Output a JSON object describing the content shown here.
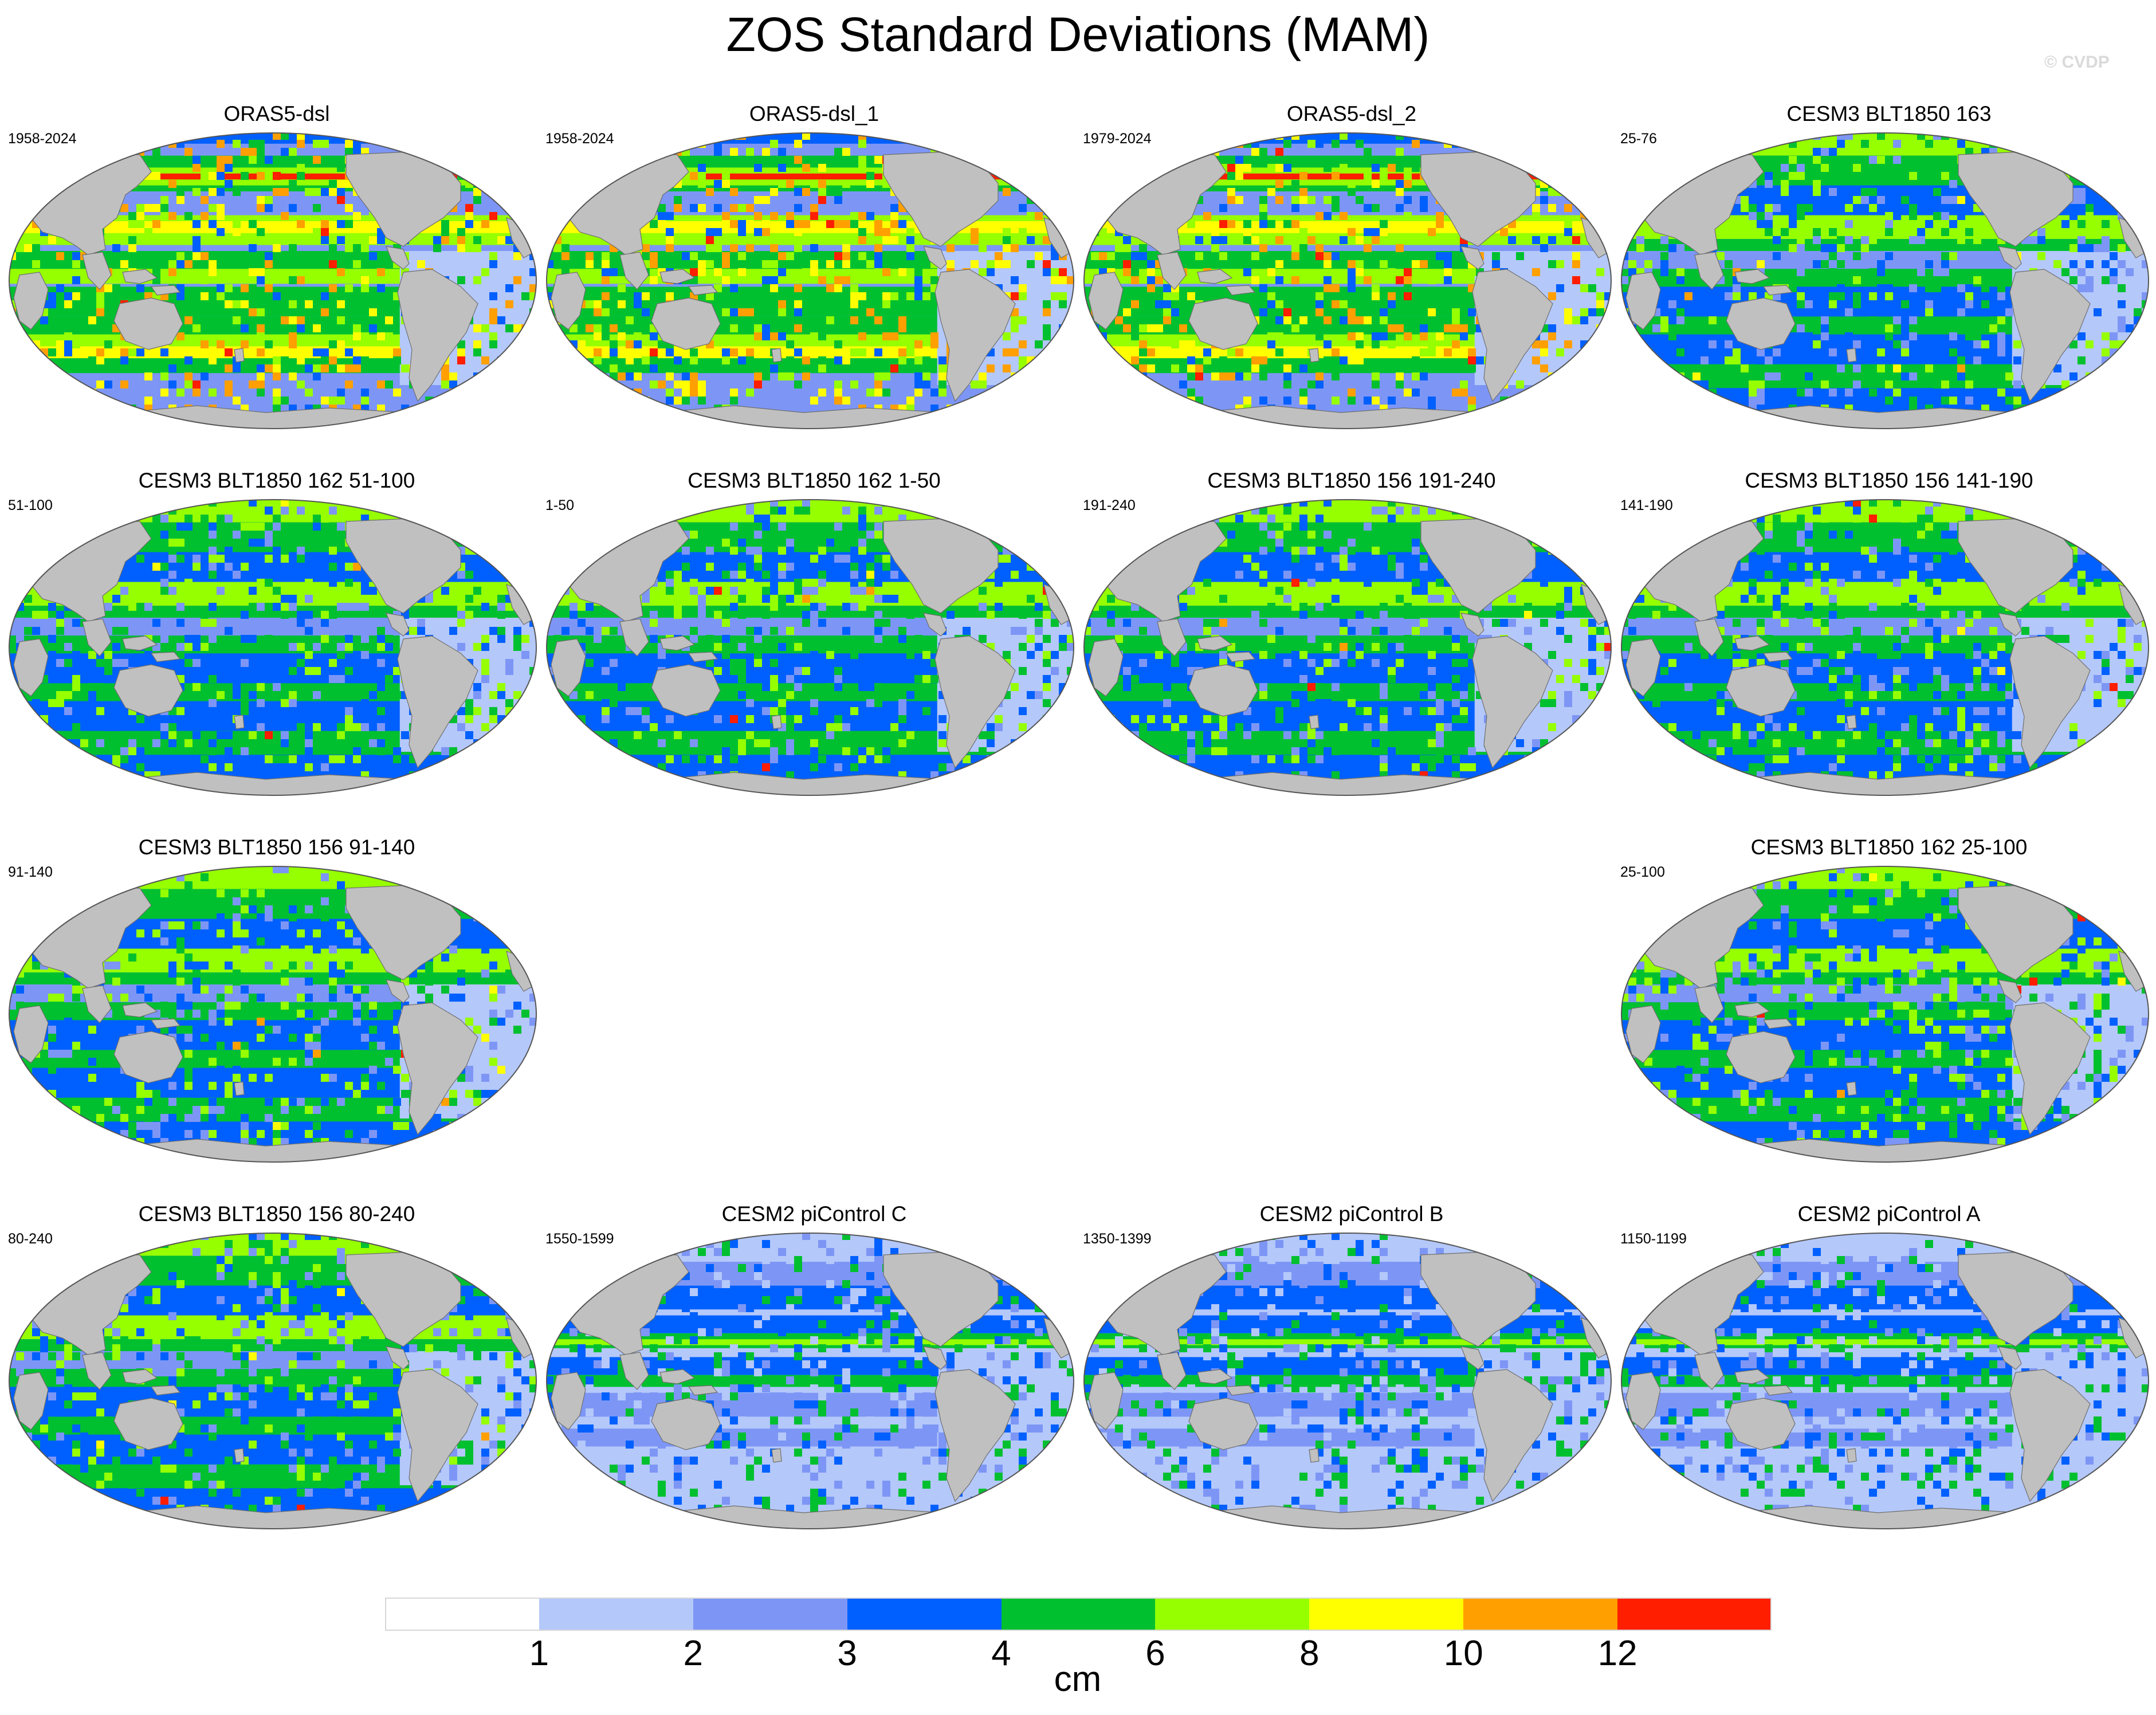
{
  "title": "ZOS Standard Deviations (MAM)",
  "watermark": "© CVDP",
  "colors": {
    "land": "#c0c0c0",
    "coast": "#6e6e6e",
    "levels": [
      "#ffffff",
      "#b4c8fa",
      "#7d96f5",
      "#0060ff",
      "#00c030",
      "#96ff00",
      "#ffff00",
      "#ffa000",
      "#ff1e00"
    ]
  },
  "panels": [
    {
      "title": "ORAS5-dsl",
      "years": "1958-2024",
      "style": "reanalysis"
    },
    {
      "title": "ORAS5-dsl_1",
      "years": "1958-2024",
      "style": "reanalysis"
    },
    {
      "title": "ORAS5-dsl_2",
      "years": "1979-2024",
      "style": "reanalysis"
    },
    {
      "title": "CESM3 BLT1850 163",
      "years": "25-76",
      "style": "cesm3"
    },
    {
      "title": "CESM3 BLT1850 162 51-100",
      "years": "51-100",
      "style": "cesm3"
    },
    {
      "title": "CESM3 BLT1850 162 1-50",
      "years": "1-50",
      "style": "cesm3"
    },
    {
      "title": "CESM3 BLT1850 156 191-240",
      "years": "191-240",
      "style": "cesm3"
    },
    {
      "title": "CESM3 BLT1850 156 141-190",
      "years": "141-190",
      "style": "cesm3"
    },
    {
      "title": "CESM3 BLT1850 156 91-140",
      "years": "91-140",
      "style": "cesm3"
    },
    null,
    null,
    {
      "title": "CESM3 BLT1850 162 25-100",
      "years": "25-100",
      "style": "cesm3"
    },
    {
      "title": "CESM3 BLT1850 156 80-240",
      "years": "80-240",
      "style": "cesm3"
    },
    {
      "title": "CESM2 piControl C",
      "years": "1550-1599",
      "style": "cesm2"
    },
    {
      "title": "CESM2 piControl B",
      "years": "1350-1399",
      "style": "cesm2"
    },
    {
      "title": "CESM2 piControl A",
      "years": "1150-1199",
      "style": "cesm2"
    }
  ],
  "colorbar": {
    "tick_labels": [
      "1",
      "2",
      "3",
      "4",
      "6",
      "8",
      "10",
      "12"
    ],
    "unit": "cm"
  }
}
